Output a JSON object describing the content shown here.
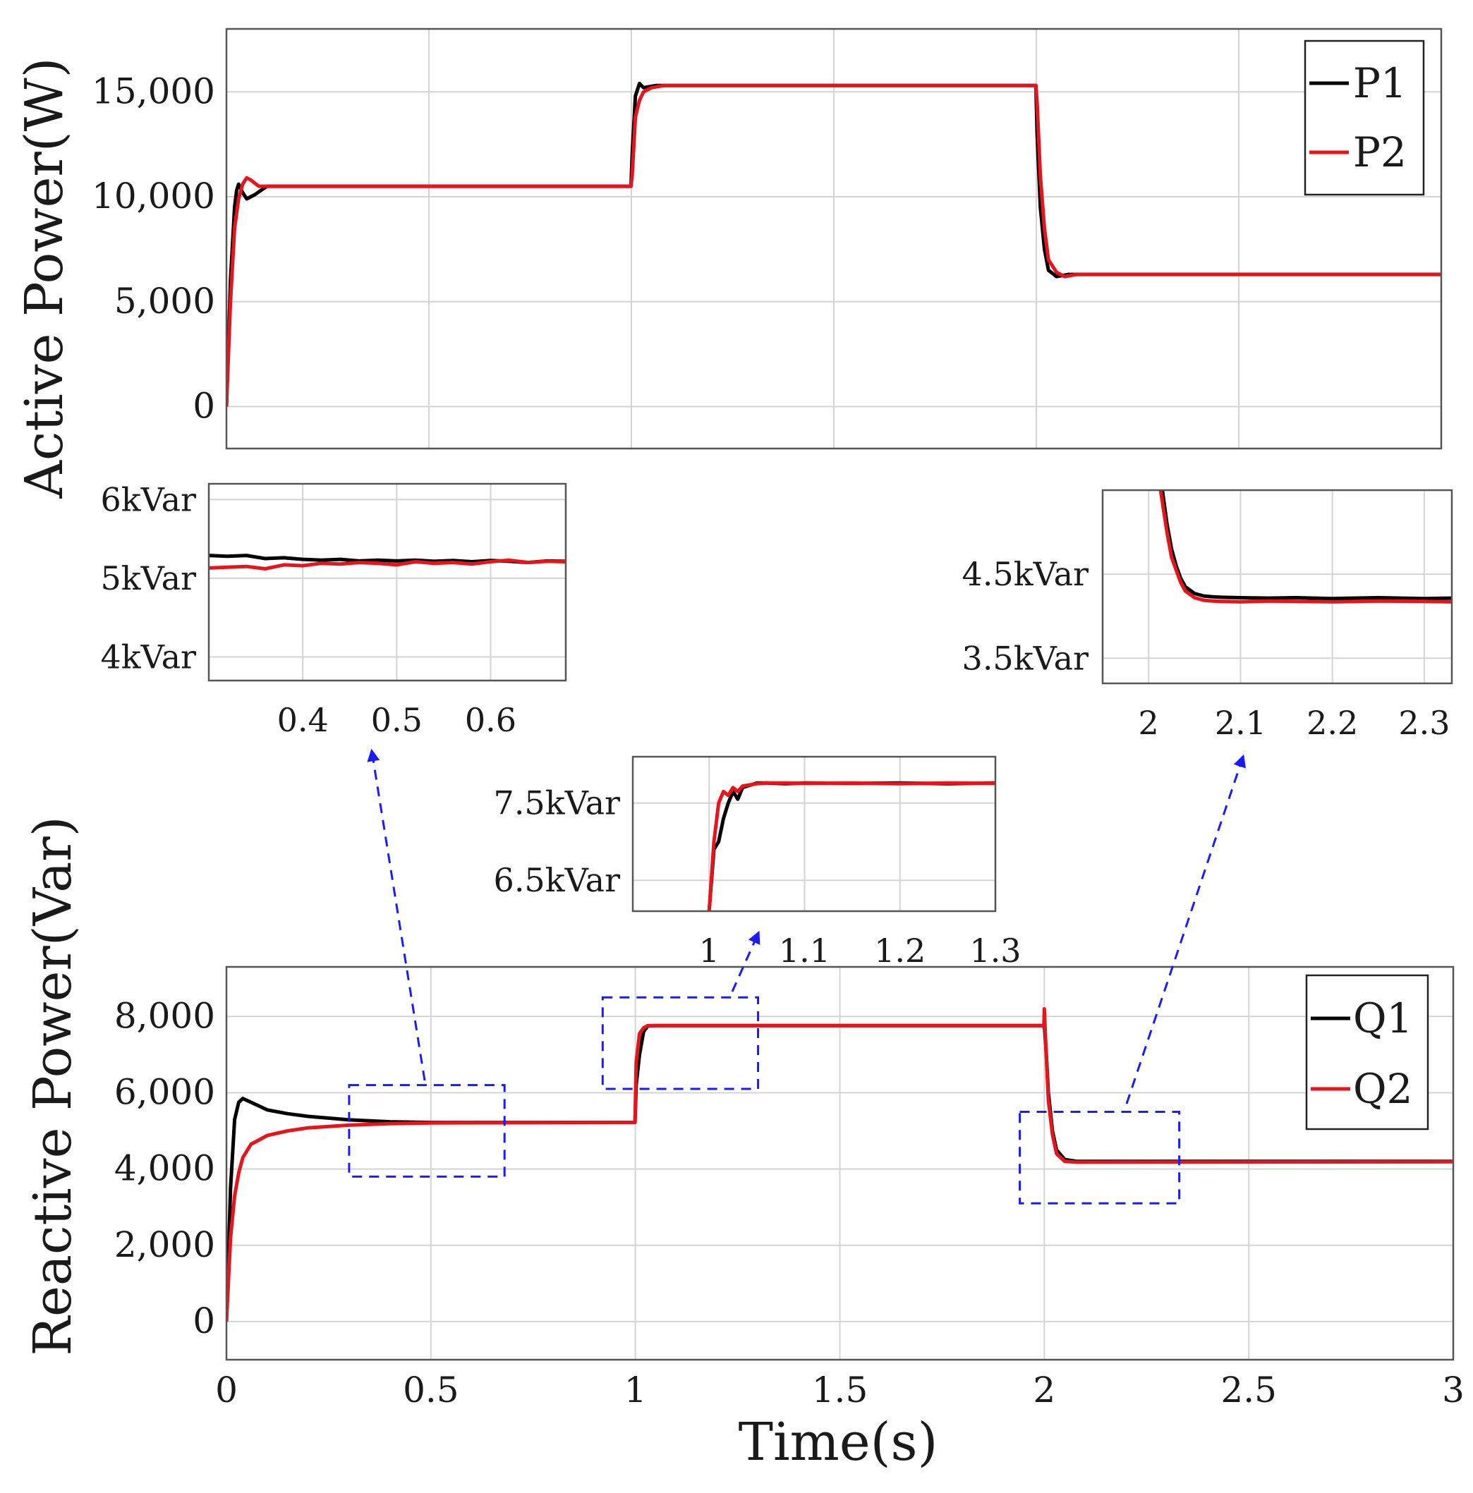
{
  "chart_data": [
    {
      "id": "active",
      "type": "line",
      "ylabel": "Active Power(W)",
      "xlabel": "",
      "xlim": [
        0,
        3
      ],
      "ylim": [
        -2000,
        18000
      ],
      "xticks": [
        0,
        0.5,
        1,
        1.5,
        2,
        2.5,
        3
      ],
      "yticks": [
        0,
        5000,
        10000,
        15000
      ],
      "ytick_labels": [
        "0",
        "5,000",
        "10,000",
        "15,000"
      ],
      "x_tick_labels_shown": false,
      "legend_position": "top-right",
      "series": [
        {
          "name": "P1",
          "color": "#000000",
          "x": [
            0,
            0.01,
            0.02,
            0.025,
            0.03,
            0.04,
            0.05,
            0.07,
            0.1,
            0.3,
            0.999,
            1.002,
            1.01,
            1.02,
            1.03,
            1.06,
            1.5,
            1.999,
            2.002,
            2.01,
            2.02,
            2.03,
            2.05,
            2.08,
            2.1,
            3.0
          ],
          "y": [
            0,
            6000,
            9500,
            10300,
            10600,
            10200,
            9900,
            10100,
            10500,
            10500,
            10500,
            12000,
            14800,
            15400,
            15200,
            15300,
            15300,
            15300,
            13000,
            9500,
            7500,
            6500,
            6200,
            6300,
            6300,
            6300
          ]
        },
        {
          "name": "P2",
          "color": "#e8141c",
          "x": [
            0,
            0.01,
            0.02,
            0.03,
            0.04,
            0.05,
            0.06,
            0.08,
            0.1,
            0.3,
            0.999,
            1.002,
            1.01,
            1.02,
            1.03,
            1.05,
            1.08,
            1.5,
            1.999,
            2.002,
            2.01,
            2.02,
            2.03,
            2.05,
            2.07,
            2.1,
            3.0
          ],
          "y": [
            0,
            5000,
            8500,
            9900,
            10600,
            10900,
            10800,
            10500,
            10500,
            10500,
            10500,
            11000,
            13800,
            14600,
            15000,
            15200,
            15300,
            15300,
            15300,
            14500,
            11000,
            8500,
            7000,
            6400,
            6200,
            6300,
            6300
          ]
        }
      ],
      "legend_labels": [
        "P1",
        "P2"
      ]
    },
    {
      "id": "reactive",
      "type": "line",
      "ylabel": "Reactive Power(Var)",
      "xlabel": "Time(s)",
      "xlim": [
        0,
        3
      ],
      "ylim": [
        -1000,
        9300
      ],
      "xticks": [
        0,
        0.5,
        1,
        1.5,
        2,
        2.5,
        3
      ],
      "xtick_labels": [
        "0",
        "0.5",
        "1",
        "1.5",
        "2",
        "2.5",
        "3"
      ],
      "yticks": [
        0,
        2000,
        4000,
        6000,
        8000
      ],
      "ytick_labels": [
        "0",
        "2,000",
        "4,000",
        "6,000",
        "8,000"
      ],
      "legend_position": "top-right",
      "series": [
        {
          "name": "Q1",
          "color": "#000000",
          "x": [
            0,
            0.01,
            0.02,
            0.03,
            0.04,
            0.05,
            0.08,
            0.1,
            0.15,
            0.2,
            0.3,
            0.4,
            0.5,
            0.999,
            1.002,
            1.01,
            1.02,
            1.03,
            1.05,
            1.5,
            1.999,
            2.0,
            2.005,
            2.01,
            2.02,
            2.03,
            2.05,
            2.08,
            3.0
          ],
          "y": [
            0,
            3500,
            5300,
            5750,
            5850,
            5800,
            5650,
            5550,
            5450,
            5380,
            5290,
            5240,
            5220,
            5220,
            6200,
            7000,
            7600,
            7750,
            7760,
            7760,
            7760,
            7800,
            7000,
            6000,
            5000,
            4500,
            4250,
            4200,
            4200
          ]
        },
        {
          "name": "Q2",
          "color": "#e8141c",
          "x": [
            0,
            0.01,
            0.02,
            0.03,
            0.04,
            0.06,
            0.1,
            0.15,
            0.2,
            0.3,
            0.4,
            0.5,
            0.999,
            1.002,
            1.01,
            1.02,
            1.03,
            1.06,
            1.5,
            1.999,
            2.0,
            2.003,
            2.01,
            2.02,
            2.03,
            2.05,
            2.08,
            3.0
          ],
          "y": [
            0,
            2200,
            3300,
            3900,
            4300,
            4650,
            4880,
            5000,
            5080,
            5150,
            5190,
            5210,
            5220,
            6800,
            7550,
            7700,
            7760,
            7760,
            7760,
            7760,
            8200,
            7400,
            5800,
            4900,
            4400,
            4200,
            4180,
            4190
          ]
        }
      ],
      "legend_labels": [
        "Q1",
        "Q2"
      ],
      "zoom_boxes": [
        {
          "x": [
            0.3,
            0.68
          ],
          "y": [
            3800,
            6200
          ]
        },
        {
          "x": [
            0.92,
            1.3
          ],
          "y": [
            6100,
            8500
          ]
        },
        {
          "x": [
            1.94,
            2.33
          ],
          "y": [
            3100,
            5500
          ]
        }
      ]
    },
    {
      "id": "inset1",
      "type": "line",
      "xlim": [
        0.3,
        0.68
      ],
      "ylim": [
        3700,
        6200
      ],
      "xticks": [
        0.4,
        0.5,
        0.6
      ],
      "xtick_labels": [
        "0.4",
        "0.5",
        "0.6"
      ],
      "yticks": [
        4000,
        5000,
        6000
      ],
      "ytick_labels": [
        "4kVar",
        "5kVar",
        "6kVar"
      ],
      "series": [
        {
          "name": "Q1",
          "color": "#000000",
          "x": [
            0.3,
            0.32,
            0.34,
            0.36,
            0.38,
            0.4,
            0.42,
            0.44,
            0.46,
            0.48,
            0.5,
            0.52,
            0.54,
            0.56,
            0.58,
            0.6,
            0.62,
            0.64,
            0.66,
            0.68
          ],
          "y": [
            5290,
            5280,
            5290,
            5250,
            5260,
            5240,
            5230,
            5240,
            5220,
            5230,
            5220,
            5230,
            5215,
            5225,
            5210,
            5225,
            5215,
            5200,
            5220,
            5215
          ]
        },
        {
          "name": "Q2",
          "color": "#e8141c",
          "x": [
            0.3,
            0.32,
            0.34,
            0.36,
            0.38,
            0.4,
            0.42,
            0.44,
            0.46,
            0.48,
            0.5,
            0.52,
            0.54,
            0.56,
            0.58,
            0.6,
            0.62,
            0.64,
            0.66,
            0.68
          ],
          "y": [
            5130,
            5140,
            5150,
            5120,
            5170,
            5160,
            5190,
            5180,
            5200,
            5190,
            5170,
            5210,
            5190,
            5200,
            5180,
            5210,
            5230,
            5200,
            5215,
            5210
          ]
        }
      ]
    },
    {
      "id": "inset2",
      "type": "line",
      "xlim": [
        0.92,
        1.3
      ],
      "ylim": [
        6100,
        8100
      ],
      "xticks": [
        1,
        1.1,
        1.2,
        1.3
      ],
      "xtick_labels": [
        "1",
        "1.1",
        "1.2",
        "1.3"
      ],
      "yticks": [
        6500,
        7500
      ],
      "ytick_labels": [
        "6.5kVar",
        "7.5kVar"
      ],
      "series": [
        {
          "name": "Q1",
          "color": "#000000",
          "x": [
            1.0,
            1.005,
            1.01,
            1.015,
            1.02,
            1.025,
            1.03,
            1.035,
            1.04,
            1.05,
            1.06,
            1.08,
            1.1,
            1.15,
            1.2,
            1.25,
            1.3
          ],
          "y": [
            6100,
            6900,
            7000,
            7300,
            7500,
            7650,
            7550,
            7700,
            7720,
            7760,
            7760,
            7750,
            7760,
            7755,
            7760,
            7750,
            7760
          ]
        },
        {
          "name": "Q2",
          "color": "#e8141c",
          "x": [
            1.0,
            1.005,
            1.01,
            1.015,
            1.02,
            1.025,
            1.03,
            1.035,
            1.04,
            1.05,
            1.06,
            1.08,
            1.1,
            1.15,
            1.2,
            1.25,
            1.3
          ],
          "y": [
            6100,
            7000,
            7500,
            7650,
            7600,
            7700,
            7650,
            7720,
            7730,
            7750,
            7760,
            7760,
            7755,
            7760,
            7750,
            7760,
            7755
          ]
        }
      ]
    },
    {
      "id": "inset3",
      "type": "line",
      "xlim": [
        1.95,
        2.33
      ],
      "ylim": [
        3200,
        5500
      ],
      "xticks": [
        2,
        2.1,
        2.2,
        2.3
      ],
      "xtick_labels": [
        "2",
        "2.1",
        "2.2",
        "2.3"
      ],
      "yticks": [
        3500,
        4500
      ],
      "ytick_labels": [
        "3.5kVar",
        "4.5kVar"
      ],
      "series": [
        {
          "name": "Q1",
          "color": "#000000",
          "x": [
            2.015,
            2.02,
            2.025,
            2.03,
            2.035,
            2.04,
            2.05,
            2.06,
            2.07,
            2.08,
            2.1,
            2.13,
            2.16,
            2.2,
            2.25,
            2.3,
            2.33
          ],
          "y": [
            5500,
            5100,
            4800,
            4600,
            4450,
            4350,
            4270,
            4240,
            4230,
            4225,
            4220,
            4215,
            4220,
            4210,
            4220,
            4210,
            4215
          ]
        },
        {
          "name": "Q2",
          "color": "#e8141c",
          "x": [
            2.013,
            2.02,
            2.025,
            2.03,
            2.035,
            2.04,
            2.05,
            2.06,
            2.07,
            2.08,
            2.1,
            2.13,
            2.16,
            2.2,
            2.25,
            2.3,
            2.33
          ],
          "y": [
            5500,
            5000,
            4700,
            4550,
            4400,
            4300,
            4220,
            4190,
            4180,
            4175,
            4170,
            4180,
            4175,
            4170,
            4180,
            4175,
            4170
          ]
        }
      ]
    }
  ]
}
